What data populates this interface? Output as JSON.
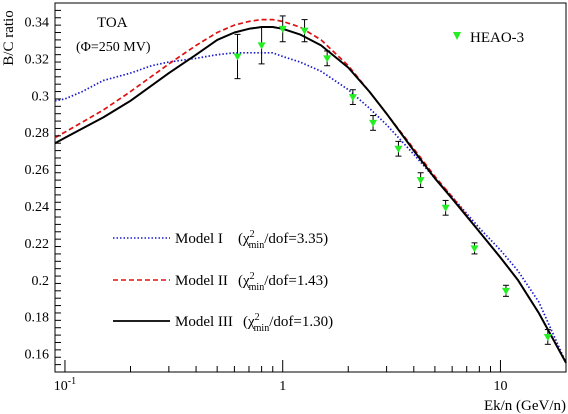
{
  "chart_data": {
    "type": "line",
    "ylabel": "B/C ratio",
    "xlabel": "Ek/n (GeV/n)",
    "xscale": "log",
    "xlim": [
      0.09,
      20
    ],
    "ylim": [
      0.15,
      0.35
    ],
    "y_ticks": [
      0.16,
      0.18,
      0.2,
      0.22,
      0.24,
      0.26,
      0.28,
      0.3,
      0.32,
      0.34
    ],
    "y_tick_labels": [
      "0.16",
      "0.18",
      "0.2",
      "0.22",
      "0.24",
      "0.26",
      "0.28",
      "0.3",
      "0.32",
      "0.34"
    ],
    "x_ticks": [
      0.1,
      1,
      10
    ],
    "x_tick_labels": [
      {
        "base": "10",
        "exp": "-1"
      },
      {
        "base": "1",
        "exp": ""
      },
      {
        "base": "10",
        "exp": ""
      }
    ],
    "grid": false,
    "annotations": {
      "line1": "TOA",
      "line2": "(Φ=250 MV)"
    },
    "series": [
      {
        "name": "Model I",
        "chi_prefix": "(χ",
        "chi_sup": "2",
        "chi_sub": "min",
        "chi_suffix": "/dof=3.35)",
        "color": "#1a1acc",
        "dash": "dotted",
        "points": [
          [
            0.09,
            0.297
          ],
          [
            0.1,
            0.298
          ],
          [
            0.12,
            0.302
          ],
          [
            0.15,
            0.308
          ],
          [
            0.2,
            0.312
          ],
          [
            0.25,
            0.316
          ],
          [
            0.3,
            0.318
          ],
          [
            0.4,
            0.32
          ],
          [
            0.5,
            0.322
          ],
          [
            0.6,
            0.323
          ],
          [
            0.7,
            0.323
          ],
          [
            0.8,
            0.323
          ],
          [
            0.9,
            0.323
          ],
          [
            1.0,
            0.321
          ],
          [
            1.2,
            0.318
          ],
          [
            1.5,
            0.313
          ],
          [
            2.0,
            0.303
          ],
          [
            2.5,
            0.293
          ],
          [
            3.0,
            0.284
          ],
          [
            4.0,
            0.268
          ],
          [
            5.0,
            0.255
          ],
          [
            6.0,
            0.245
          ],
          [
            8.0,
            0.228
          ],
          [
            10.0,
            0.216
          ],
          [
            12.0,
            0.205
          ],
          [
            15.0,
            0.188
          ],
          [
            20.0,
            0.155
          ]
        ]
      },
      {
        "name": "Model II",
        "chi_prefix": "(χ",
        "chi_sup": "2",
        "chi_sub": "min",
        "chi_suffix": "/dof=1.43)",
        "color": "#e01010",
        "dash": "dashed",
        "points": [
          [
            0.09,
            0.277
          ],
          [
            0.1,
            0.28
          ],
          [
            0.15,
            0.292
          ],
          [
            0.2,
            0.302
          ],
          [
            0.3,
            0.317
          ],
          [
            0.4,
            0.327
          ],
          [
            0.5,
            0.334
          ],
          [
            0.6,
            0.338
          ],
          [
            0.7,
            0.34
          ],
          [
            0.8,
            0.341
          ],
          [
            0.9,
            0.341
          ],
          [
            1.0,
            0.34
          ],
          [
            1.2,
            0.337
          ],
          [
            1.5,
            0.33
          ],
          [
            2.0,
            0.316
          ],
          [
            2.5,
            0.302
          ],
          [
            3.0,
            0.29
          ],
          [
            4.0,
            0.271
          ],
          [
            5.0,
            0.256
          ],
          [
            6.0,
            0.245
          ],
          [
            8.0,
            0.226
          ],
          [
            10.0,
            0.212
          ],
          [
            12.0,
            0.2
          ],
          [
            15.0,
            0.182
          ],
          [
            20.0,
            0.155
          ]
        ]
      },
      {
        "name": "Model III",
        "chi_prefix": "(χ",
        "chi_sup": "2",
        "chi_sub": "min",
        "chi_suffix": "/dof=1.30)",
        "color": "#000000",
        "dash": "solid",
        "points": [
          [
            0.09,
            0.274
          ],
          [
            0.1,
            0.277
          ],
          [
            0.15,
            0.288
          ],
          [
            0.2,
            0.297
          ],
          [
            0.3,
            0.312
          ],
          [
            0.4,
            0.322
          ],
          [
            0.5,
            0.33
          ],
          [
            0.6,
            0.334
          ],
          [
            0.7,
            0.336
          ],
          [
            0.8,
            0.337
          ],
          [
            0.9,
            0.337
          ],
          [
            1.0,
            0.336
          ],
          [
            1.2,
            0.333
          ],
          [
            1.5,
            0.327
          ],
          [
            2.0,
            0.315
          ],
          [
            2.5,
            0.302
          ],
          [
            3.0,
            0.29
          ],
          [
            4.0,
            0.27
          ],
          [
            5.0,
            0.255
          ],
          [
            6.0,
            0.244
          ],
          [
            8.0,
            0.226
          ],
          [
            10.0,
            0.212
          ],
          [
            12.0,
            0.2
          ],
          [
            15.0,
            0.182
          ],
          [
            20.0,
            0.155
          ]
        ]
      }
    ],
    "data": {
      "name": "HEAO-3",
      "color": "#22ee22",
      "marker": "triangle-down",
      "points": [
        {
          "x": 0.62,
          "y": 0.321,
          "err": 0.012
        },
        {
          "x": 0.8,
          "y": 0.327,
          "err": 0.01
        },
        {
          "x": 1.0,
          "y": 0.336,
          "err": 0.007
        },
        {
          "x": 1.26,
          "y": 0.335,
          "err": 0.006
        },
        {
          "x": 1.6,
          "y": 0.32,
          "err": 0.004
        },
        {
          "x": 2.1,
          "y": 0.299,
          "err": 0.004
        },
        {
          "x": 2.6,
          "y": 0.285,
          "err": 0.004
        },
        {
          "x": 3.4,
          "y": 0.271,
          "err": 0.004
        },
        {
          "x": 4.3,
          "y": 0.254,
          "err": 0.004
        },
        {
          "x": 5.6,
          "y": 0.239,
          "err": 0.004
        },
        {
          "x": 7.6,
          "y": 0.217,
          "err": 0.003
        },
        {
          "x": 10.6,
          "y": 0.194,
          "err": 0.003
        },
        {
          "x": 16.5,
          "y": 0.169,
          "err": 0.004
        }
      ]
    },
    "legend_position": "lower-left"
  }
}
